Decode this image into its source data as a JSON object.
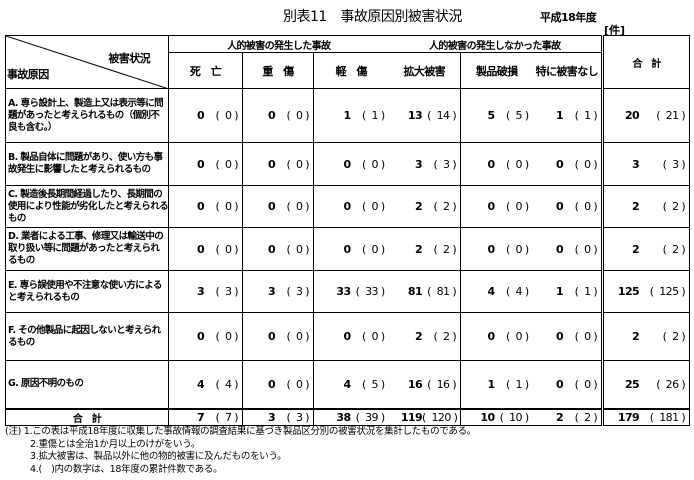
{
  "title": "別表11　事故原因別被害状況",
  "year": "平成18年度",
  "unit": "[件]",
  "header": {
    "damage_label": "被害状況",
    "cause_label": "事故原因",
    "group_injury": "人的被害の発生した事故",
    "group_no_injury": "人的被害の発生しなかった事故",
    "columns": [
      "死　亡",
      "重　傷",
      "軽　傷",
      "拡大被害",
      "製品破損",
      "特に被害なし"
    ],
    "total": "合　計"
  },
  "rows": [
    {
      "cause": "A. 専ら設計上、製造上又は表示等に問題があったと考えられるもの（個別不良も含む。）",
      "values": [
        [
          0,
          0
        ],
        [
          0,
          0
        ],
        [
          1,
          1
        ],
        [
          13,
          14
        ],
        [
          5,
          5
        ],
        [
          1,
          1
        ]
      ],
      "total": [
        20,
        21
      ]
    },
    {
      "cause": "B. 製品自体に問題があり、使い方も事故発生に影響したと考えられるもの",
      "values": [
        [
          0,
          0
        ],
        [
          0,
          0
        ],
        [
          0,
          0
        ],
        [
          3,
          3
        ],
        [
          0,
          0
        ],
        [
          0,
          0
        ]
      ],
      "total": [
        3,
        3
      ]
    },
    {
      "cause": "C. 製造後長期間経過したり、長期間の使用により性能が劣化したと考えられるもの",
      "values": [
        [
          0,
          0
        ],
        [
          0,
          0
        ],
        [
          0,
          0
        ],
        [
          2,
          2
        ],
        [
          0,
          0
        ],
        [
          0,
          0
        ]
      ],
      "total": [
        2,
        2
      ]
    },
    {
      "cause": "D. 業者による工事、修理又は輸送中の取り扱い等に問題があったと考えられるもの",
      "values": [
        [
          0,
          0
        ],
        [
          0,
          0
        ],
        [
          0,
          0
        ],
        [
          2,
          2
        ],
        [
          0,
          0
        ],
        [
          0,
          0
        ]
      ],
      "total": [
        2,
        2
      ]
    },
    {
      "cause": "E. 専ら誤使用や不注意な使い方によると考えられるもの",
      "values": [
        [
          3,
          3
        ],
        [
          3,
          3
        ],
        [
          33,
          33
        ],
        [
          81,
          81
        ],
        [
          4,
          4
        ],
        [
          1,
          1
        ]
      ],
      "total": [
        125,
        125
      ]
    },
    {
      "cause": "F. その他製品に起因しないと考えられるもの",
      "values": [
        [
          0,
          0
        ],
        [
          0,
          0
        ],
        [
          0,
          0
        ],
        [
          2,
          2
        ],
        [
          0,
          0
        ],
        [
          0,
          0
        ]
      ],
      "total": [
        2,
        2
      ]
    },
    {
      "cause": "G. 原因不明のもの",
      "values": [
        [
          4,
          4
        ],
        [
          0,
          0
        ],
        [
          4,
          5
        ],
        [
          16,
          16
        ],
        [
          1,
          1
        ],
        [
          0,
          0
        ]
      ],
      "total": [
        25,
        26
      ]
    }
  ],
  "totals": {
    "label": "合　計",
    "values": [
      [
        7,
        7
      ],
      [
        3,
        3
      ],
      [
        38,
        39
      ],
      [
        119,
        120
      ],
      [
        10,
        10
      ],
      [
        2,
        2
      ]
    ],
    "total": [
      179,
      181
    ]
  },
  "notes": [
    "(注) 1.この表は平成18年度に収集した事故情報の調査結果に基づき製品区分別の被害状況を集計したものである。",
    "2.重傷とは全治1か月以上のけがをいう。",
    "3.拡大被害は、製品以外に他の物的被害に及んだものをいう。",
    "4.(　)内の数字は、18年度の累計件数である。"
  ]
}
